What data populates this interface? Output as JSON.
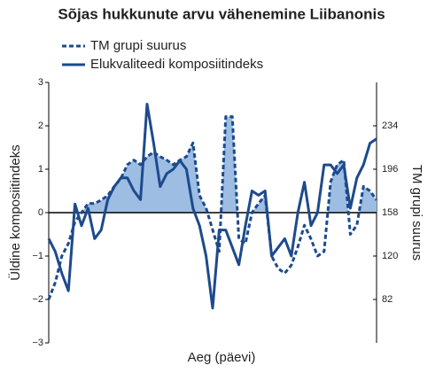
{
  "chart_data": {
    "type": "line",
    "title": "Sõjas hukkunute arvu vähenemine Liibanonis",
    "x_label": "Aeg (päevi)",
    "y_label": "Üldine komposiitindeks",
    "y2_label": "TM grupi suurus",
    "ylim": [
      -3,
      3
    ],
    "yticks": [
      {
        "value": -3,
        "label": "−3"
      },
      {
        "value": -2,
        "label": "−2"
      },
      {
        "value": -1,
        "label": "−1"
      },
      0,
      1,
      2,
      3
    ],
    "y2lim": [
      44,
      272
    ],
    "y2ticks": [
      82,
      120,
      158,
      196,
      234
    ],
    "legend": "top-left",
    "series": [
      {
        "name": "TM grupi suurus",
        "color": "#1d4a8c",
        "style": "dashed",
        "axis": "y2",
        "fill": "#9dbde3",
        "values": [
          82,
          97,
          120,
          131,
          150,
          158,
          166,
          166,
          169,
          173,
          181,
          188,
          200,
          204,
          200,
          207,
          211,
          207,
          204,
          200,
          204,
          207,
          219,
          173,
          162,
          143,
          124,
          242,
          242,
          135,
          131,
          158,
          166,
          173,
          120,
          109,
          105,
          112,
          128,
          147,
          135,
          120,
          124,
          185,
          200,
          204,
          139,
          147,
          181,
          177,
          169
        ]
      },
      {
        "name": "Elukvaliteedi komposiitindeks",
        "color": "#1d4a8c",
        "style": "solid",
        "values": [
          -0.6,
          -0.9,
          -1.4,
          -1.8,
          0.2,
          -0.3,
          0.1,
          -0.6,
          -0.4,
          0.3,
          0.6,
          0.8,
          0.8,
          0.5,
          0.3,
          2.5,
          1.6,
          0.6,
          0.9,
          1.0,
          1.2,
          1.0,
          0.1,
          -0.3,
          -1.0,
          -2.2,
          -0.4,
          -0.4,
          -0.8,
          -1.2,
          -0.3,
          0.5,
          0.4,
          0.5,
          -1.0,
          -0.8,
          -0.6,
          -1.0,
          0.0,
          0.7,
          -0.3,
          0.0,
          1.1,
          1.1,
          0.9,
          1.1,
          0.1,
          0.8,
          1.1,
          1.6,
          1.7
        ]
      }
    ]
  }
}
